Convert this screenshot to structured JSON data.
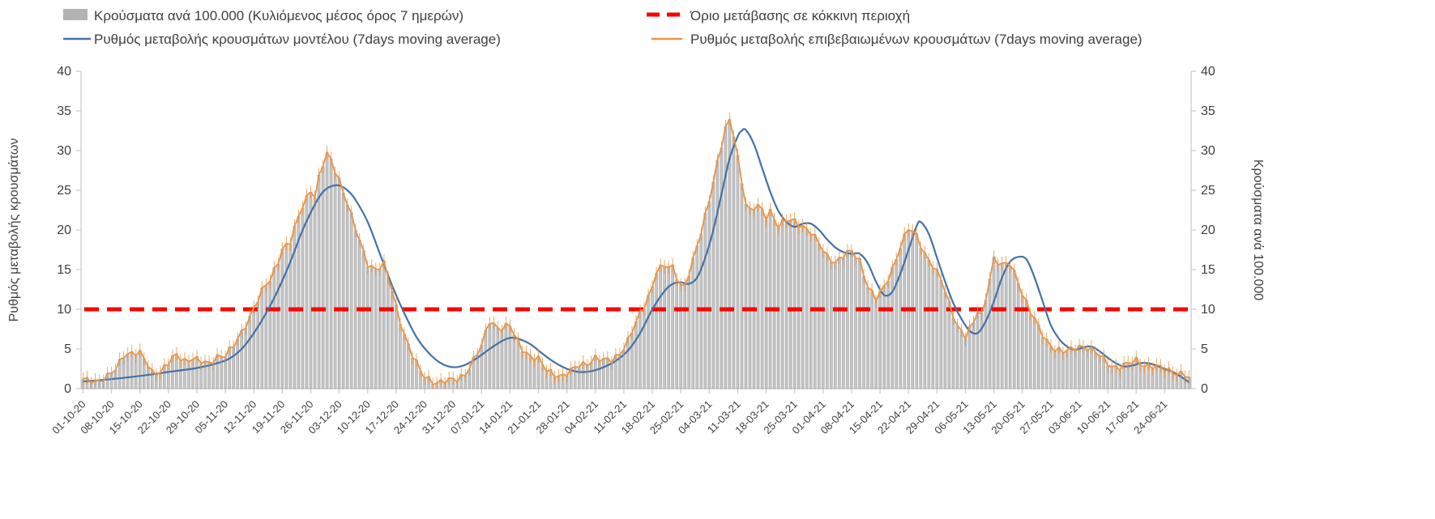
{
  "chart_data": {
    "type": "bar_line_combo",
    "title": "",
    "ylabel_left": "Ρυθμός μεταβολής κρουσμάτων",
    "ylabel_right": "Κρούσματα ανά 100.000",
    "ylim": [
      0,
      40
    ],
    "yticks": [
      0,
      5,
      10,
      15,
      20,
      25,
      30,
      35,
      40
    ],
    "grid": false,
    "legend_position": "top",
    "n_days": 273,
    "x_tick_interval_days": 7,
    "x_tick_labels": [
      "01-10-20",
      "08-10-20",
      "15-10-20",
      "22-10-20",
      "29-10-20",
      "05-11-20",
      "12-11-20",
      "19-11-20",
      "26-11-20",
      "03-12-20",
      "10-12-20",
      "17-12-20",
      "24-12-20",
      "31-12-20",
      "07-01-21",
      "14-01-21",
      "21-01-21",
      "28-01-21",
      "04-02-21",
      "11-02-21",
      "18-02-21",
      "25-02-21",
      "04-03-21",
      "11-03-21",
      "18-03-21",
      "25-03-21",
      "01-04-21",
      "08-04-21",
      "15-04-21",
      "22-04-21",
      "29-04-21",
      "06-05-21",
      "13-05-21",
      "20-05-21",
      "27-05-21",
      "03-06-21",
      "10-06-21",
      "17-06-21",
      "24-06-21"
    ],
    "threshold": {
      "label": "Όριο μετάβασης σε κόκκινη περιοχή",
      "value": 10,
      "color": "#ff0000"
    },
    "colors": {
      "bars_fill": "#c6c6c6",
      "bars_stroke": "#9e9e9e",
      "model_line": "#4472a8",
      "confirmed_line": "#e8964a",
      "axis": "#c9c9c9",
      "text": "#3f3f3f"
    },
    "series": [
      {
        "name": "Κρούσματα ανά 100.000 (Κυλιόμενος μέσος όρος 7 ημερών)",
        "kind": "bar",
        "color": "#c6c6c6",
        "source": "confirmed"
      },
      {
        "name": "Ρυθμός μεταβολής κρουσμάτων μοντέλου (7days moving average)",
        "kind": "line",
        "color": "#4472a8",
        "points": [
          [
            0,
            0.9
          ],
          [
            7,
            1.2
          ],
          [
            14,
            1.6
          ],
          [
            21,
            2.1
          ],
          [
            28,
            2.6
          ],
          [
            33,
            3.2
          ],
          [
            36,
            3.8
          ],
          [
            39,
            5.0
          ],
          [
            42,
            7.0
          ],
          [
            45,
            9.5
          ],
          [
            48,
            12.5
          ],
          [
            51,
            16.0
          ],
          [
            54,
            20.0
          ],
          [
            57,
            23.2
          ],
          [
            59,
            24.8
          ],
          [
            61,
            25.5
          ],
          [
            63,
            25.6
          ],
          [
            65,
            25.0
          ],
          [
            67,
            23.8
          ],
          [
            70,
            21.0
          ],
          [
            73,
            17.0
          ],
          [
            76,
            13.0
          ],
          [
            79,
            9.5
          ],
          [
            82,
            6.5
          ],
          [
            85,
            4.5
          ],
          [
            88,
            3.2
          ],
          [
            91,
            2.7
          ],
          [
            94,
            3.0
          ],
          [
            97,
            3.9
          ],
          [
            100,
            5.0
          ],
          [
            103,
            6.0
          ],
          [
            105,
            6.4
          ],
          [
            107,
            6.3
          ],
          [
            110,
            5.6
          ],
          [
            113,
            4.4
          ],
          [
            116,
            3.3
          ],
          [
            119,
            2.5
          ],
          [
            122,
            2.1
          ],
          [
            125,
            2.2
          ],
          [
            128,
            2.7
          ],
          [
            131,
            3.5
          ],
          [
            134,
            4.8
          ],
          [
            137,
            7.0
          ],
          [
            140,
            10.0
          ],
          [
            143,
            12.3
          ],
          [
            145,
            13.2
          ],
          [
            147,
            13.4
          ],
          [
            149,
            13.2
          ],
          [
            151,
            14.0
          ],
          [
            153,
            16.5
          ],
          [
            155,
            20.0
          ],
          [
            157,
            24.5
          ],
          [
            159,
            29.0
          ],
          [
            161,
            31.8
          ],
          [
            162,
            32.5
          ],
          [
            163,
            32.6
          ],
          [
            165,
            30.8
          ],
          [
            167,
            27.8
          ],
          [
            169,
            24.8
          ],
          [
            171,
            22.4
          ],
          [
            173,
            21.0
          ],
          [
            175,
            20.4
          ],
          [
            177,
            20.8
          ],
          [
            179,
            20.8
          ],
          [
            181,
            20.0
          ],
          [
            183,
            18.8
          ],
          [
            185,
            17.8
          ],
          [
            187,
            17.2
          ],
          [
            189,
            17.0
          ],
          [
            191,
            17.0
          ],
          [
            193,
            15.8
          ],
          [
            195,
            13.5
          ],
          [
            197,
            11.8
          ],
          [
            199,
            12.2
          ],
          [
            201,
            14.5
          ],
          [
            203,
            17.5
          ],
          [
            205,
            20.5
          ],
          [
            206,
            21.0
          ],
          [
            208,
            19.5
          ],
          [
            210,
            16.5
          ],
          [
            212,
            13.5
          ],
          [
            214,
            10.8
          ],
          [
            216,
            8.8
          ],
          [
            218,
            7.3
          ],
          [
            220,
            7.0
          ],
          [
            222,
            8.5
          ],
          [
            224,
            11.0
          ],
          [
            226,
            14.0
          ],
          [
            228,
            16.0
          ],
          [
            230,
            16.6
          ],
          [
            232,
            16.3
          ],
          [
            234,
            14.0
          ],
          [
            236,
            11.0
          ],
          [
            238,
            8.0
          ],
          [
            240,
            6.3
          ],
          [
            242,
            5.3
          ],
          [
            244,
            4.9
          ],
          [
            246,
            5.2
          ],
          [
            248,
            5.3
          ],
          [
            250,
            4.7
          ],
          [
            252,
            3.9
          ],
          [
            254,
            3.2
          ],
          [
            256,
            2.8
          ],
          [
            258,
            2.9
          ],
          [
            260,
            3.2
          ],
          [
            262,
            3.2
          ],
          [
            264,
            2.9
          ],
          [
            266,
            2.5
          ],
          [
            268,
            2.1
          ],
          [
            270,
            1.5
          ],
          [
            272,
            0.8
          ]
        ]
      },
      {
        "name": "Ρυθμός μεταβολής επιβεβαιωμένων κρουσμάτων (7days moving average)",
        "kind": "line",
        "color": "#e8964a",
        "points": [
          [
            0,
            1.0
          ],
          [
            2,
            1.1
          ],
          [
            4,
            1.1
          ],
          [
            6,
            1.4
          ],
          [
            8,
            2.3
          ],
          [
            10,
            4.4
          ],
          [
            12,
            4.6
          ],
          [
            14,
            4.3
          ],
          [
            16,
            2.9
          ],
          [
            17,
            2.1
          ],
          [
            19,
            2.3
          ],
          [
            21,
            3.2
          ],
          [
            23,
            4.1
          ],
          [
            25,
            3.6
          ],
          [
            27,
            4.0
          ],
          [
            29,
            3.3
          ],
          [
            31,
            3.0
          ],
          [
            33,
            4.2
          ],
          [
            35,
            4.3
          ],
          [
            37,
            5.2
          ],
          [
            39,
            7.0
          ],
          [
            41,
            9.2
          ],
          [
            42,
            10.3
          ],
          [
            44,
            12.2
          ],
          [
            46,
            13.6
          ],
          [
            48,
            16.2
          ],
          [
            49,
            17.8
          ],
          [
            51,
            18.5
          ],
          [
            52,
            20.0
          ],
          [
            54,
            23.0
          ],
          [
            56,
            25.2
          ],
          [
            57,
            24.4
          ],
          [
            58,
            26.6
          ],
          [
            59,
            28.2
          ],
          [
            60,
            29.4
          ],
          [
            61,
            28.6
          ],
          [
            63,
            26.4
          ],
          [
            65,
            23.5
          ],
          [
            67,
            20.0
          ],
          [
            69,
            17.0
          ],
          [
            70,
            15.8
          ],
          [
            72,
            15.2
          ],
          [
            74,
            15.6
          ],
          [
            76,
            12.2
          ],
          [
            77,
            10.2
          ],
          [
            79,
            7.0
          ],
          [
            81,
            4.2
          ],
          [
            83,
            2.0
          ],
          [
            84,
            1.4
          ],
          [
            86,
            1.0
          ],
          [
            88,
            0.9
          ],
          [
            90,
            0.9
          ],
          [
            92,
            1.1
          ],
          [
            94,
            2.0
          ],
          [
            96,
            3.6
          ],
          [
            98,
            5.2
          ],
          [
            99,
            7.0
          ],
          [
            100,
            8.6
          ],
          [
            101,
            8.2
          ],
          [
            103,
            7.6
          ],
          [
            105,
            7.9
          ],
          [
            106,
            6.6
          ],
          [
            108,
            5.1
          ],
          [
            110,
            4.2
          ],
          [
            112,
            3.6
          ],
          [
            114,
            2.2
          ],
          [
            116,
            1.9
          ],
          [
            118,
            1.7
          ],
          [
            120,
            2.1
          ],
          [
            122,
            2.9
          ],
          [
            124,
            3.3
          ],
          [
            126,
            3.9
          ],
          [
            128,
            3.4
          ],
          [
            130,
            3.6
          ],
          [
            132,
            4.6
          ],
          [
            134,
            6.0
          ],
          [
            136,
            8.2
          ],
          [
            138,
            10.5
          ],
          [
            140,
            13.0
          ],
          [
            141,
            14.9
          ],
          [
            143,
            15.3
          ],
          [
            145,
            15.2
          ],
          [
            147,
            13.2
          ],
          [
            148,
            13.1
          ],
          [
            150,
            16.0
          ],
          [
            152,
            19.6
          ],
          [
            154,
            24.0
          ],
          [
            156,
            28.6
          ],
          [
            158,
            32.6
          ],
          [
            159,
            33.6
          ],
          [
            160,
            32.0
          ],
          [
            161,
            29.2
          ],
          [
            162,
            26.2
          ],
          [
            163,
            23.6
          ],
          [
            164,
            22.4
          ],
          [
            166,
            22.9
          ],
          [
            168,
            21.6
          ],
          [
            169,
            22.5
          ],
          [
            171,
            20.6
          ],
          [
            173,
            21.1
          ],
          [
            175,
            21.0
          ],
          [
            177,
            20.6
          ],
          [
            179,
            19.8
          ],
          [
            181,
            18.1
          ],
          [
            183,
            16.6
          ],
          [
            185,
            16.1
          ],
          [
            187,
            16.8
          ],
          [
            189,
            17.1
          ],
          [
            191,
            16.1
          ],
          [
            193,
            13.1
          ],
          [
            195,
            11.2
          ],
          [
            197,
            12.6
          ],
          [
            199,
            15.1
          ],
          [
            201,
            18.1
          ],
          [
            203,
            20.1
          ],
          [
            205,
            19.1
          ],
          [
            207,
            17.1
          ],
          [
            209,
            15.6
          ],
          [
            211,
            13.6
          ],
          [
            213,
            10.6
          ],
          [
            215,
            8.1
          ],
          [
            217,
            6.6
          ],
          [
            219,
            8.1
          ],
          [
            220,
            9.7
          ],
          [
            221,
            9.1
          ],
          [
            222,
            11.6
          ],
          [
            223,
            14.1
          ],
          [
            224,
            16.4
          ],
          [
            226,
            15.4
          ],
          [
            228,
            15.7
          ],
          [
            230,
            13.6
          ],
          [
            231,
            12.1
          ],
          [
            233,
            9.6
          ],
          [
            235,
            7.6
          ],
          [
            237,
            6.1
          ],
          [
            239,
            5.1
          ],
          [
            241,
            4.5
          ],
          [
            243,
            4.8
          ],
          [
            245,
            5.5
          ],
          [
            247,
            5.2
          ],
          [
            249,
            4.4
          ],
          [
            251,
            3.7
          ],
          [
            253,
            3.0
          ],
          [
            255,
            2.6
          ],
          [
            257,
            3.0
          ],
          [
            259,
            3.6
          ],
          [
            261,
            3.1
          ],
          [
            263,
            2.7
          ],
          [
            265,
            2.5
          ],
          [
            267,
            2.4
          ],
          [
            269,
            2.1
          ],
          [
            271,
            1.6
          ],
          [
            272,
            1.2
          ]
        ]
      }
    ]
  }
}
